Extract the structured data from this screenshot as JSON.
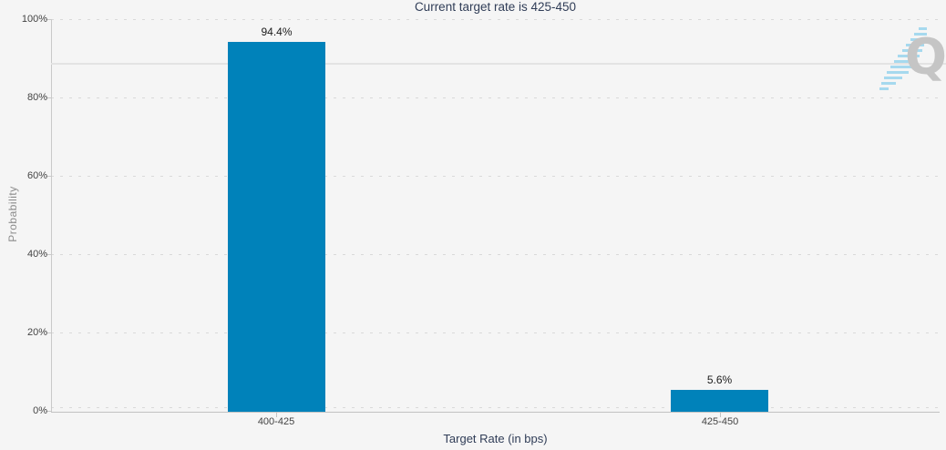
{
  "colors": {
    "background": "#f5f5f5",
    "bar": "#0082ba",
    "title_text": "#303d57",
    "tick_label_text": "#444444",
    "value_label_text": "#1c1c1c",
    "y_axis_title_text": "#8c8c8c",
    "axis_line": "#c9c9c9",
    "gridline_dotted": "#d9d9d9",
    "reference_line": "#e3e3e3",
    "watermark_letter": "#c5c5c5",
    "watermark_stripes": "#a6d9ee"
  },
  "watermark": {
    "letter": "Q"
  },
  "chart_data": {
    "type": "bar",
    "title": "Current target rate is 425-450",
    "xlabel": "Target Rate (in bps)",
    "ylabel": "Probability",
    "categories": [
      "400-425",
      "425-450"
    ],
    "values": [
      94.4,
      5.6
    ],
    "value_labels": [
      "94.4%",
      "5.6%"
    ],
    "y_tick_labels_top_to_bottom": [
      "100%",
      "80%",
      "60%",
      "40%",
      "20%",
      "0%"
    ],
    "ylim": [
      0,
      100
    ],
    "grid": "horizontal dotted gridlines at 20% intervals",
    "legend": "none",
    "annotations": [
      {
        "type": "horizontal-reference-line",
        "y_pct": 88.5
      }
    ]
  }
}
